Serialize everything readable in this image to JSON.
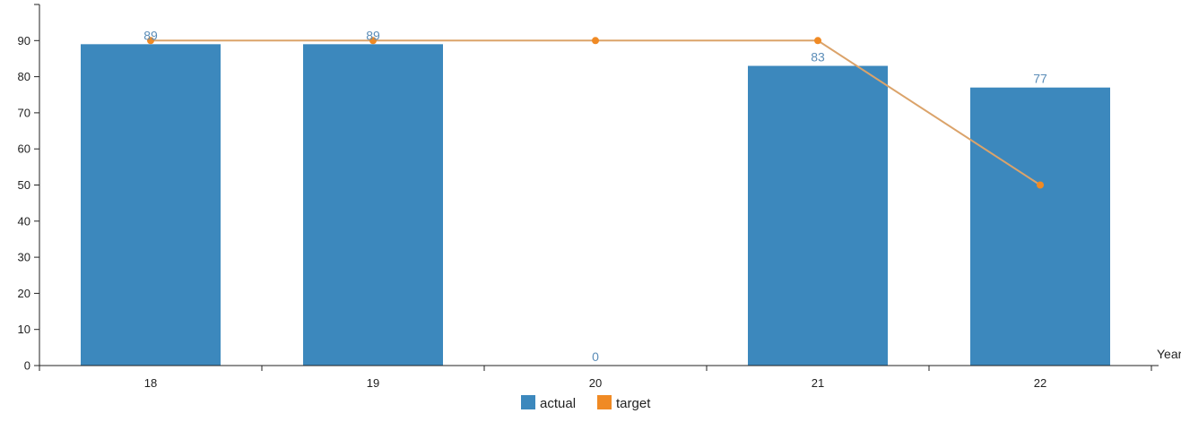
{
  "chart_data": {
    "type": "bar",
    "xlabel": "Year",
    "categories": [
      "18",
      "19",
      "20",
      "21",
      "22"
    ],
    "ylim": [
      0,
      100
    ],
    "yticks": [
      0,
      10,
      20,
      30,
      40,
      50,
      60,
      70,
      80,
      90
    ],
    "grid": false,
    "legend_position": "bottom-center",
    "series": [
      {
        "name": "actual",
        "type": "bar",
        "color": "#3c88bd",
        "label_color": "#5b8db8",
        "values": [
          89,
          89,
          0,
          83,
          77
        ]
      },
      {
        "name": "target",
        "type": "line",
        "color": "#f08a24",
        "line_color": "#dba36a",
        "values": [
          90,
          90,
          90,
          90,
          50
        ]
      }
    ]
  }
}
